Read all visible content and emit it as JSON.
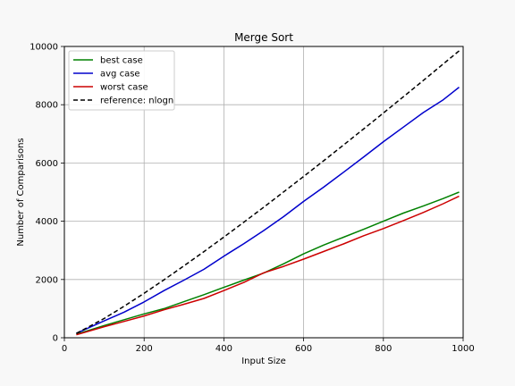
{
  "chart_data": {
    "type": "line",
    "title": "Merge Sort",
    "xlabel": "Input Size",
    "ylabel": "Number of Comparisons",
    "xlim": [
      0,
      1000
    ],
    "ylim": [
      0,
      10000
    ],
    "xticks": [
      0,
      200,
      400,
      600,
      800,
      1000
    ],
    "yticks": [
      0,
      2000,
      4000,
      6000,
      8000,
      10000
    ],
    "grid": true,
    "legend_position": "top-left",
    "series": [
      {
        "name": "best case",
        "color": "#008000",
        "style": "solid",
        "x": [
          30,
          100,
          150,
          200,
          250,
          300,
          350,
          400,
          450,
          500,
          550,
          600,
          650,
          700,
          750,
          800,
          850,
          900,
          950,
          990
        ],
        "y": [
          120,
          420,
          620,
          820,
          1000,
          1240,
          1480,
          1730,
          1980,
          2220,
          2540,
          2880,
          3180,
          3450,
          3720,
          4000,
          4280,
          4520,
          4780,
          5000
        ]
      },
      {
        "name": "avg case",
        "color": "#0000cc",
        "style": "solid",
        "x": [
          30,
          100,
          150,
          200,
          250,
          300,
          350,
          400,
          450,
          500,
          550,
          600,
          650,
          700,
          750,
          800,
          850,
          900,
          950,
          990
        ],
        "y": [
          150,
          580,
          880,
          1230,
          1620,
          1980,
          2350,
          2800,
          3230,
          3680,
          4160,
          4680,
          5170,
          5680,
          6200,
          6730,
          7230,
          7730,
          8170,
          8600
        ]
      },
      {
        "name": "worst case",
        "color": "#cc0000",
        "style": "solid",
        "x": [
          30,
          100,
          150,
          200,
          250,
          300,
          350,
          400,
          450,
          500,
          550,
          600,
          650,
          700,
          750,
          800,
          850,
          900,
          950,
          990
        ],
        "y": [
          100,
          380,
          560,
          750,
          960,
          1150,
          1350,
          1620,
          1900,
          2230,
          2450,
          2700,
          2960,
          3220,
          3500,
          3750,
          4020,
          4300,
          4600,
          4860
        ]
      },
      {
        "name": "reference: nlogn",
        "color": "#000000",
        "style": "dashed",
        "x": [
          30,
          100,
          150,
          200,
          250,
          300,
          350,
          400,
          450,
          500,
          550,
          600,
          650,
          700,
          750,
          800,
          850,
          900,
          950,
          990
        ],
        "y": [
          147,
          664,
          1084,
          1529,
          1991,
          2469,
          2958,
          3458,
          3966,
          4483,
          5008,
          5537,
          6075,
          6616,
          7164,
          7715,
          8272,
          8832,
          9398,
          9850
        ]
      }
    ]
  }
}
